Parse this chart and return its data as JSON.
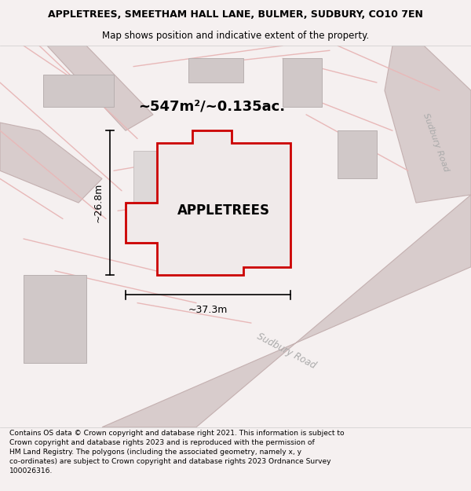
{
  "title": "APPLETREES, SMEETHAM HALL LANE, BULMER, SUDBURY, CO10 7EN",
  "subtitle": "Map shows position and indicative extent of the property.",
  "footer": "Contains OS data © Crown copyright and database right 2021. This information is subject to Crown copyright and database rights 2023 and is reproduced with the permission of HM Land Registry. The polygons (including the associated geometry, namely x, y co-ordinates) are subject to Crown copyright and database rights 2023 Ordnance Survey 100026316.",
  "area_label": "~547m²/~0.135ac.",
  "property_name": "APPLETREES",
  "dim_width": "~37.3m",
  "dim_height": "~26.8m",
  "road_label_diag": "Sudbury Road",
  "road_label_right": "Sudbury Road",
  "bg_color": "#f5f0f0",
  "map_bg": "#ffffff",
  "road_fill": "#d8cccc",
  "road_edge": "#c4b0b0",
  "building_fill": "#d0c8c8",
  "building_edge": "#b8b0b0",
  "boundary_color": "#e8b8b8",
  "property_fill": "#f0eaea",
  "property_border": "#cc0000",
  "dim_color": "#000000",
  "text_color": "#000000",
  "road_text_color": "#aaaaaa",
  "inner_bld_fill": "#ddd8d8",
  "inner_bld_edge": "#c4bcbc"
}
